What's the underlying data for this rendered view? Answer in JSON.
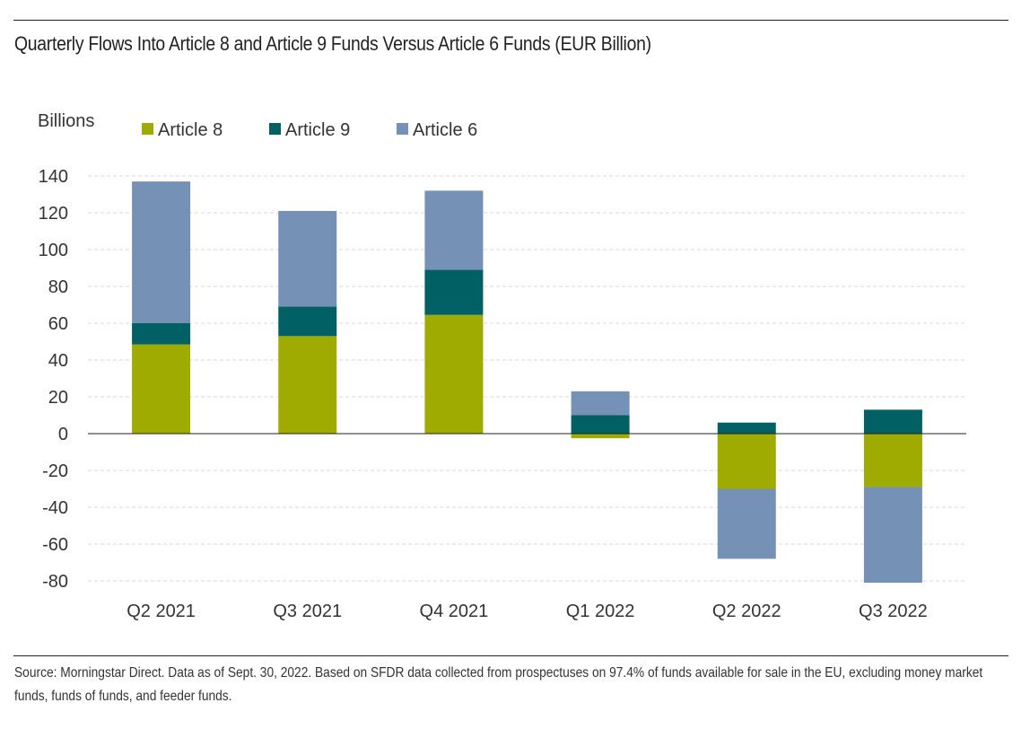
{
  "title": "Quarterly Flows Into Article 8 and Article 9 Funds Versus Article 6 Funds (EUR Billion)",
  "source": "Source: Morningstar Direct. Data as of Sept. 30, 2022. Based on SFDR data collected from prospectuses on 97.4% of funds available for sale in the EU, excluding money market funds, funds of funds, and feeder funds.",
  "chart_data": {
    "type": "bar",
    "stacked": true,
    "title": "Quarterly Flows Into Article 8 and Article 9 Funds Versus Article 6 Funds (EUR Billion)",
    "xlabel": "",
    "ylabel": "Billions",
    "categories": [
      "Q2 2021",
      "Q3 2021",
      "Q4 2021",
      "Q1 2022",
      "Q2 2022",
      "Q3 2022"
    ],
    "series": [
      {
        "name": "Article 8",
        "color": "#a0ab00",
        "values": [
          48.5,
          53,
          64.5,
          -2.5,
          -30,
          -29
        ]
      },
      {
        "name": "Article 9",
        "color": "#006063",
        "values": [
          11.5,
          16,
          24.5,
          10,
          6,
          13
        ]
      },
      {
        "name": "Article 6",
        "color": "#7591b5",
        "values": [
          77,
          52,
          43,
          13,
          -38,
          -52
        ]
      }
    ],
    "ylim": [
      -80,
      140
    ],
    "yticks": [
      140,
      120,
      100,
      80,
      60,
      40,
      20,
      0,
      -20,
      -40,
      -60,
      -80
    ],
    "grid": true,
    "legend": "top-left"
  }
}
